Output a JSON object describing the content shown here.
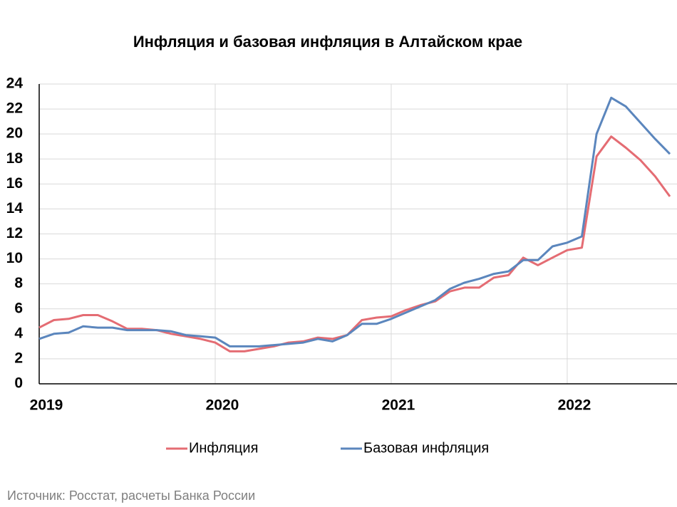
{
  "chart_data": {
    "type": "line",
    "title": "Инфляция и базовая инфляция в Алтайском крае",
    "source": "Источник: Росстат, расчеты Банка России",
    "categories": [
      "2019",
      null,
      null,
      null,
      null,
      null,
      null,
      null,
      null,
      null,
      null,
      null,
      "2020",
      null,
      null,
      null,
      null,
      null,
      null,
      null,
      null,
      null,
      null,
      null,
      "2021",
      null,
      null,
      null,
      null,
      null,
      null,
      null,
      null,
      null,
      null,
      null,
      "2022",
      null,
      null,
      null,
      null,
      null,
      null,
      null
    ],
    "series": [
      {
        "name": "Инфляция",
        "color": "#e46c73",
        "values": [
          4.5,
          5.1,
          5.2,
          5.5,
          5.5,
          5.0,
          4.4,
          4.4,
          4.3,
          4.0,
          3.8,
          3.6,
          3.3,
          2.6,
          2.6,
          2.8,
          3.0,
          3.3,
          3.4,
          3.7,
          3.6,
          3.9,
          5.1,
          5.3,
          5.4,
          5.9,
          6.3,
          6.6,
          7.4,
          7.7,
          7.7,
          8.5,
          8.7,
          10.1,
          9.5,
          10.1,
          10.7,
          10.9,
          18.2,
          19.8,
          18.9,
          17.9,
          16.6,
          15.0
        ]
      },
      {
        "name": "Базовая инфляция",
        "color": "#5b86bd",
        "values": [
          3.6,
          4.0,
          4.1,
          4.6,
          4.5,
          4.5,
          4.3,
          4.3,
          4.3,
          4.2,
          3.9,
          3.8,
          3.7,
          3.0,
          3.0,
          3.0,
          3.1,
          3.2,
          3.3,
          3.6,
          3.4,
          3.9,
          4.8,
          4.8,
          5.2,
          5.7,
          6.2,
          6.7,
          7.6,
          8.1,
          8.4,
          8.8,
          9.0,
          9.9,
          9.9,
          11.0,
          11.3,
          11.8,
          20.0,
          22.9,
          22.2,
          20.9,
          19.6,
          18.4
        ]
      }
    ],
    "ylim": [
      0,
      24
    ],
    "yticks": [
      0,
      2,
      4,
      6,
      8,
      10,
      12,
      14,
      16,
      18,
      20,
      22,
      24
    ],
    "grid": true
  }
}
